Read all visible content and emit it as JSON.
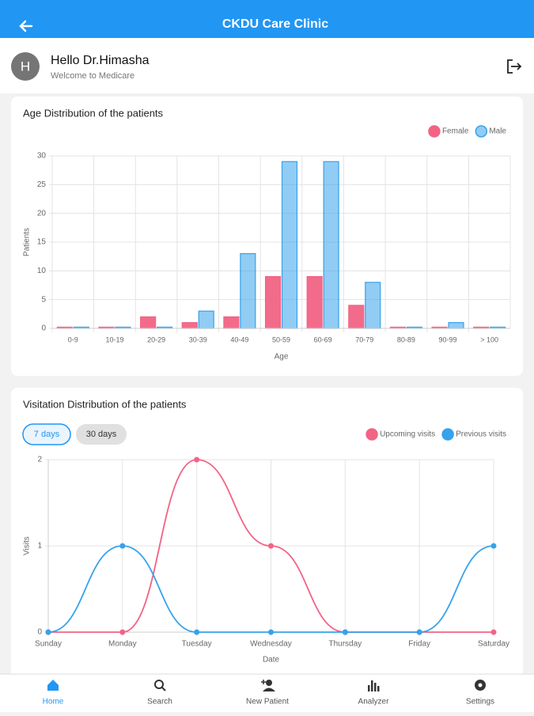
{
  "header": {
    "title": "CKDU Care Clinic"
  },
  "user": {
    "avatar": "H",
    "greeting": "Hello Dr.Himasha",
    "subtitle": "Welcome to Medicare"
  },
  "chart_data": [
    {
      "type": "bar",
      "title": "Age Distribution of the patients",
      "x_label": "Age",
      "y_label": "Patients",
      "categories": [
        "0-9",
        "10-19",
        "20-29",
        "30-39",
        "40-49",
        "50-59",
        "60-69",
        "70-79",
        "80-89",
        "90-99",
        "> 100"
      ],
      "series": [
        {
          "name": "Female",
          "color": "#f26384",
          "values": [
            0,
            0,
            2,
            1,
            2,
            9,
            9,
            4,
            0,
            0,
            0
          ]
        },
        {
          "name": "Male",
          "color": "#36a2eb",
          "values": [
            0,
            0,
            0,
            3,
            13,
            29,
            29,
            8,
            0,
            1,
            0
          ]
        }
      ],
      "ylim": [
        0,
        30
      ],
      "yticks": [
        0,
        5,
        10,
        15,
        20,
        25,
        30
      ],
      "grid": true
    },
    {
      "type": "line",
      "title": "Visitation Distribution of the patients",
      "range_buttons": [
        "7 days",
        "30 days"
      ],
      "x_label": "Date",
      "y_label": "Visits",
      "categories": [
        "Sunday",
        "Monday",
        "Tuesday",
        "Wednesday",
        "Thursday",
        "Friday",
        "Saturday"
      ],
      "series": [
        {
          "name": "Upcoming visits",
          "color": "#f26384",
          "values": [
            0,
            0,
            2,
            1,
            0,
            0,
            0
          ]
        },
        {
          "name": "Previous visits",
          "color": "#36a2eb",
          "values": [
            0,
            1,
            0,
            0,
            0,
            0,
            1
          ]
        }
      ],
      "ylim": [
        0,
        2
      ],
      "yticks": [
        0,
        1,
        2
      ],
      "grid": true
    }
  ],
  "nav": [
    "Home",
    "Search",
    "New Patient",
    "Analyzer",
    "Settings"
  ]
}
